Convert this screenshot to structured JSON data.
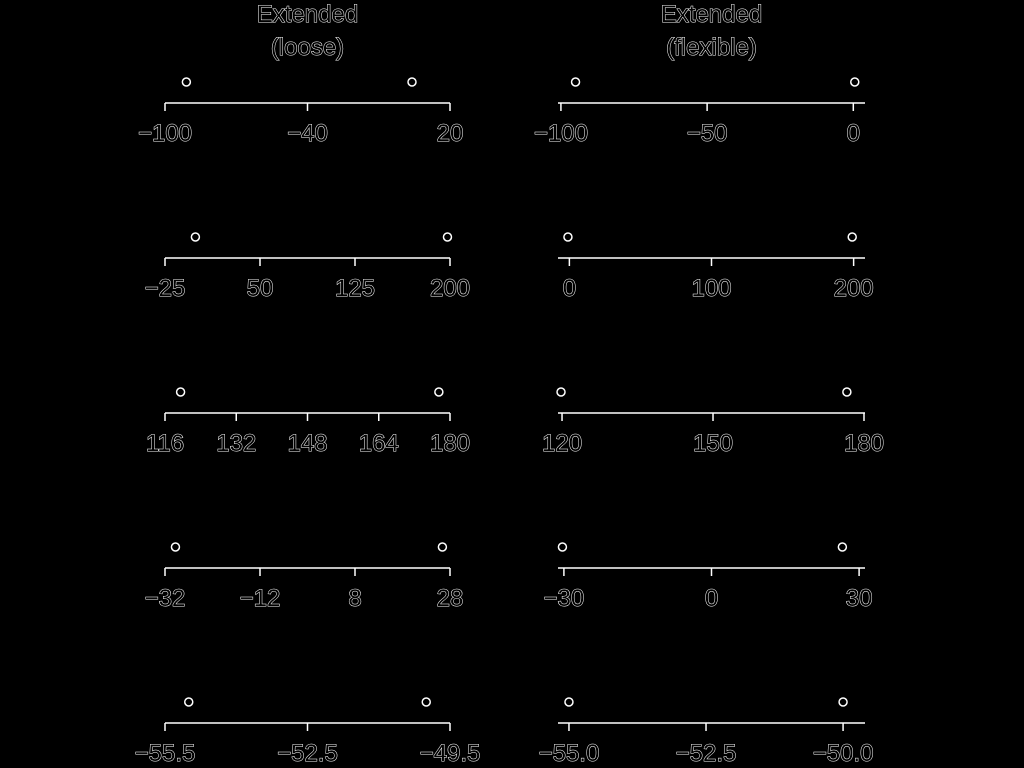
{
  "chart_data": [
    {
      "type": "scatter",
      "title": "Extended\n(loose)",
      "xlim": [
        -100,
        20
      ],
      "ticks": [
        -100,
        -40,
        20
      ],
      "tick_labels": [
        "−100",
        "−40",
        "20"
      ],
      "points": [
        -91,
        4
      ]
    },
    {
      "type": "scatter",
      "title": "Extended\n(flexible)",
      "xlim": [
        -101,
        4
      ],
      "ticks": [
        -100,
        -50,
        0
      ],
      "tick_labels": [
        "−100",
        "−50",
        "0"
      ],
      "points": [
        -95,
        0.5
      ]
    },
    {
      "type": "scatter",
      "title": "",
      "xlim": [
        -25,
        200
      ],
      "ticks": [
        -25,
        50,
        125,
        200
      ],
      "tick_labels": [
        "−25",
        "50",
        "125",
        "200"
      ],
      "points": [
        -1,
        198
      ]
    },
    {
      "type": "scatter",
      "title": "",
      "xlim": [
        -8,
        208
      ],
      "ticks": [
        0,
        100,
        200
      ],
      "tick_labels": [
        "0",
        "100",
        "200"
      ],
      "points": [
        -1,
        199
      ]
    },
    {
      "type": "scatter",
      "title": "",
      "xlim": [
        116,
        180
      ],
      "ticks": [
        116,
        132,
        148,
        164,
        180
      ],
      "tick_labels": [
        "116",
        "132",
        "148",
        "164",
        "180"
      ],
      "points": [
        119.5,
        177.5
      ]
    },
    {
      "type": "scatter",
      "title": "",
      "xlim": [
        119.2,
        180.2
      ],
      "ticks": [
        120,
        150,
        180
      ],
      "tick_labels": [
        "120",
        "150",
        "180"
      ],
      "points": [
        119.8,
        176.6
      ]
    },
    {
      "type": "scatter",
      "title": "",
      "xlim": [
        -32,
        28
      ],
      "ticks": [
        -32,
        -12,
        8,
        28
      ],
      "tick_labels": [
        "−32",
        "−12",
        "8",
        "28"
      ],
      "points": [
        -29.8,
        26.4
      ]
    },
    {
      "type": "scatter",
      "title": "",
      "xlim": [
        -31.2,
        31.2
      ],
      "ticks": [
        -30,
        0,
        30
      ],
      "tick_labels": [
        "−30",
        "0",
        "30"
      ],
      "points": [
        -30.3,
        26.6
      ]
    },
    {
      "type": "scatter",
      "title": "",
      "xlim": [
        -55.5,
        -49.5
      ],
      "ticks": [
        -55.5,
        -52.5,
        -49.5
      ],
      "tick_labels": [
        "−55.5",
        "−52.5",
        "−49.5"
      ],
      "points": [
        -55.0,
        -50.0
      ]
    },
    {
      "type": "scatter",
      "title": "",
      "xlim": [
        -55.2,
        -49.6
      ],
      "ticks": [
        -55.0,
        -52.5,
        -50.0
      ],
      "tick_labels": [
        "−55.0",
        "−52.5",
        "−50.0"
      ],
      "points": [
        -55.0,
        -50.0
      ]
    }
  ]
}
